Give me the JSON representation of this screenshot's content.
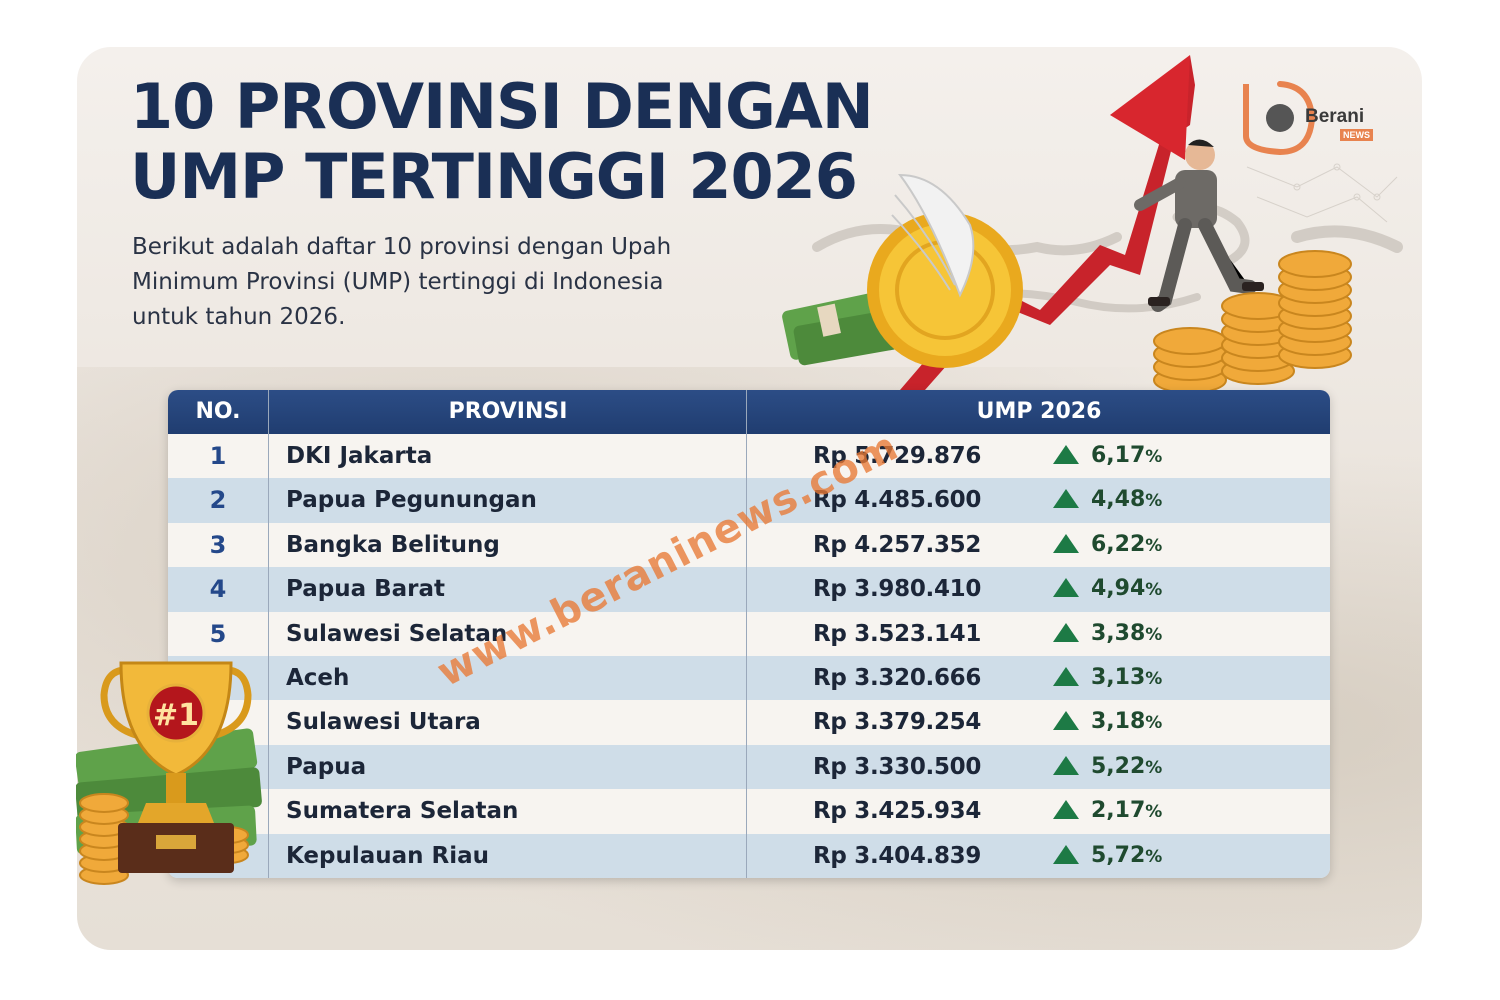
{
  "header": {
    "title_line1": "10 PROVINSI DENGAN",
    "title_line2": "UMP TERTINGGI 2026",
    "subtitle": "Berikut adalah daftar 10 provinsi dengan Upah Minimum Provinsi (UMP) tertinggi di Indonesia untuk tahun 2026."
  },
  "logo": {
    "name": "Berani",
    "sub": "NEWS",
    "accent_color": "#e8834f"
  },
  "table": {
    "columns": [
      "NO.",
      "PROVINSI",
      "UMP 2026"
    ],
    "rows": [
      {
        "no": "1",
        "provinsi": "DKI Jakarta",
        "ump": "Rp 5.729.876",
        "pct": "6,17",
        "pct_sign": "%"
      },
      {
        "no": "2",
        "provinsi": "Papua Pegunungan",
        "ump": "Rp 4.485.600",
        "pct": "4,48",
        "pct_sign": "%"
      },
      {
        "no": "3",
        "provinsi": "Bangka Belitung",
        "ump": "Rp 4.257.352",
        "pct": "6,22",
        "pct_sign": "%"
      },
      {
        "no": "4",
        "provinsi": "Papua Barat",
        "ump": "Rp 3.980.410",
        "pct": "4,94",
        "pct_sign": "%"
      },
      {
        "no": "5",
        "provinsi": "Sulawesi Selatan",
        "ump": "Rp 3.523.141",
        "pct": "3,38",
        "pct_sign": "%"
      },
      {
        "no": "",
        "provinsi": "Aceh",
        "ump": "Rp 3.320.666",
        "pct": "3,13",
        "pct_sign": "%"
      },
      {
        "no": "",
        "provinsi": "Sulawesi Utara",
        "ump": "Rp 3.379.254",
        "pct": "3,18",
        "pct_sign": "%"
      },
      {
        "no": "",
        "provinsi": "Papua",
        "ump": "Rp 3.330.500",
        "pct": "5,22",
        "pct_sign": "%"
      },
      {
        "no": "",
        "provinsi": "Sumatera Selatan",
        "ump": "Rp 3.425.934",
        "pct": "2,17",
        "pct_sign": "%"
      },
      {
        "no": "",
        "provinsi": "Kepulauan Riau",
        "ump": "Rp 3.404.839",
        "pct": "5,72",
        "pct_sign": "%"
      }
    ]
  },
  "trophy": {
    "label": "#1"
  },
  "watermark": "www.beraninews.com",
  "colors": {
    "title": "#1a2f55",
    "header_bg": "#203d70",
    "row_alt": "#cfdde8",
    "up_arrow": "#1d7a45",
    "watermark": "#e87834"
  },
  "icons": [
    "up-triangle-icon",
    "trophy-icon",
    "coin-icon",
    "money-stack-icon",
    "winged-coin-icon",
    "growth-arrow-icon",
    "berani-logo-icon"
  ]
}
